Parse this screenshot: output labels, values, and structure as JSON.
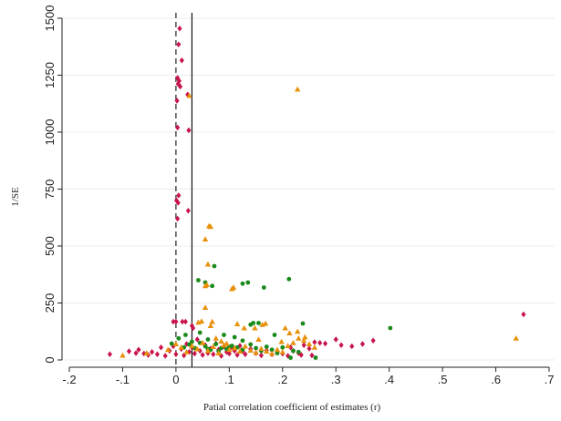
{
  "chart_data": {
    "type": "scatter",
    "title": "",
    "xlabel": "Patial correlation coefficient of estimates (r)",
    "ylabel": "1/SE",
    "xlim": [
      -0.2,
      0.7
    ],
    "ylim": [
      0,
      1500
    ],
    "x_ticks": [
      {
        "value": -0.2,
        "label": "-.2"
      },
      {
        "value": -0.1,
        "label": "-.1"
      },
      {
        "value": 0,
        "label": "0"
      },
      {
        "value": 0.1,
        "label": ".1"
      },
      {
        "value": 0.2,
        "label": ".2"
      },
      {
        "value": 0.3,
        "label": ".3"
      },
      {
        "value": 0.4,
        "label": ".4"
      },
      {
        "value": 0.5,
        "label": ".5"
      },
      {
        "value": 0.6,
        "label": ".6"
      },
      {
        "value": 0.7,
        "label": ".7"
      }
    ],
    "y_ticks": [
      {
        "value": 0,
        "label": "0"
      },
      {
        "value": 250,
        "label": "250"
      },
      {
        "value": 500,
        "label": "500"
      },
      {
        "value": 750,
        "label": "750"
      },
      {
        "value": 1000,
        "label": "1000"
      },
      {
        "value": 1250,
        "label": "1250"
      },
      {
        "value": 1500,
        "label": "1500"
      }
    ],
    "grid": true,
    "reference_lines": [
      {
        "x": 0,
        "style": "dashed",
        "color": "#222222"
      },
      {
        "x": 0.03,
        "style": "solid",
        "color": "#111111"
      }
    ],
    "series": [
      {
        "marker": "diamond",
        "color": "#c8144b",
        "points": [
          [
            0.007,
            1455
          ],
          [
            0.005,
            1385
          ],
          [
            0.011,
            1315
          ],
          [
            0.003,
            1238
          ],
          [
            0.006,
            1225
          ],
          [
            0.004,
            1212
          ],
          [
            0.008,
            1200
          ],
          [
            0.022,
            1165
          ],
          [
            0.002,
            1138
          ],
          [
            0.003,
            1020
          ],
          [
            0.024,
            1008
          ],
          [
            0.005,
            722
          ],
          [
            0.001,
            700
          ],
          [
            0.004,
            690
          ],
          [
            0.023,
            655
          ],
          [
            0.003,
            620
          ],
          [
            -0.005,
            168
          ],
          [
            0.0,
            168
          ],
          [
            0.012,
            168
          ],
          [
            0.018,
            168
          ],
          [
            0.03,
            150
          ],
          [
            0.032,
            140
          ],
          [
            -0.124,
            25
          ],
          [
            -0.088,
            38
          ],
          [
            -0.075,
            30
          ],
          [
            -0.07,
            45
          ],
          [
            -0.06,
            28
          ],
          [
            -0.052,
            22
          ],
          [
            -0.045,
            35
          ],
          [
            -0.035,
            25
          ],
          [
            -0.028,
            55
          ],
          [
            -0.02,
            18
          ],
          [
            -0.012,
            40
          ],
          [
            -0.005,
            60
          ],
          [
            0.0,
            25
          ],
          [
            0.01,
            48
          ],
          [
            0.015,
            20
          ],
          [
            0.02,
            70
          ],
          [
            0.025,
            35
          ],
          [
            0.03,
            55
          ],
          [
            0.035,
            28
          ],
          [
            0.04,
            90
          ],
          [
            0.045,
            40
          ],
          [
            0.05,
            22
          ],
          [
            0.055,
            65
          ],
          [
            0.06,
            30
          ],
          [
            0.065,
            50
          ],
          [
            0.07,
            25
          ],
          [
            0.075,
            72
          ],
          [
            0.08,
            45
          ],
          [
            0.085,
            18
          ],
          [
            0.09,
            60
          ],
          [
            0.095,
            35
          ],
          [
            0.1,
            28
          ],
          [
            0.105,
            55
          ],
          [
            0.11,
            40
          ],
          [
            0.115,
            22
          ],
          [
            0.12,
            62
          ],
          [
            0.125,
            38
          ],
          [
            0.13,
            25
          ],
          [
            0.14,
            48
          ],
          [
            0.15,
            30
          ],
          [
            0.16,
            20
          ],
          [
            0.17,
            42
          ],
          [
            0.18,
            25
          ],
          [
            0.19,
            35
          ],
          [
            0.2,
            28
          ],
          [
            0.21,
            18
          ],
          [
            0.22,
            40
          ],
          [
            0.23,
            30
          ],
          [
            0.24,
            65
          ],
          [
            0.25,
            50
          ],
          [
            0.26,
            78
          ],
          [
            0.27,
            75
          ],
          [
            0.28,
            72
          ],
          [
            0.3,
            90
          ],
          [
            0.31,
            65
          ],
          [
            0.33,
            60
          ],
          [
            0.35,
            70
          ],
          [
            0.37,
            85
          ],
          [
            0.255,
            20
          ],
          [
            0.215,
            55
          ],
          [
            0.235,
            22
          ],
          [
            0.652,
            200
          ]
        ]
      },
      {
        "marker": "circle",
        "color": "#1a8a1a",
        "points": [
          [
            0.042,
            350
          ],
          [
            0.055,
            340
          ],
          [
            0.068,
            325
          ],
          [
            0.072,
            412
          ],
          [
            0.125,
            335
          ],
          [
            0.135,
            340
          ],
          [
            0.165,
            318
          ],
          [
            0.212,
            355
          ],
          [
            0.145,
            162
          ],
          [
            0.14,
            155
          ],
          [
            0.155,
            162
          ],
          [
            0.185,
            110
          ],
          [
            0.238,
            160
          ],
          [
            0.402,
            140
          ],
          [
            0.018,
            110
          ],
          [
            0.03,
            80
          ],
          [
            -0.008,
            72
          ],
          [
            0.005,
            95
          ],
          [
            0.015,
            55
          ],
          [
            0.025,
            68
          ],
          [
            0.035,
            52
          ],
          [
            0.045,
            75
          ],
          [
            0.055,
            60
          ],
          [
            0.065,
            45
          ],
          [
            0.075,
            70
          ],
          [
            0.085,
            52
          ],
          [
            0.095,
            48
          ],
          [
            0.105,
            62
          ],
          [
            0.115,
            55
          ],
          [
            0.125,
            45
          ],
          [
            0.14,
            68
          ],
          [
            0.15,
            52
          ],
          [
            0.16,
            40
          ],
          [
            0.17,
            58
          ],
          [
            0.18,
            45
          ],
          [
            0.19,
            30
          ],
          [
            0.2,
            55
          ],
          [
            0.22,
            40
          ],
          [
            0.23,
            35
          ],
          [
            0.262,
            10
          ],
          [
            0.215,
            10
          ],
          [
            0.045,
            120
          ],
          [
            0.06,
            90
          ],
          [
            0.09,
            110
          ],
          [
            0.11,
            100
          ],
          [
            0.125,
            85
          ],
          [
            0.06,
            48
          ],
          [
            0.08,
            38
          ],
          [
            0.1,
            58
          ]
        ]
      },
      {
        "marker": "triangle",
        "color": "#e8900a",
        "points": [
          [
            0.228,
            1188
          ],
          [
            0.025,
            1160
          ],
          [
            0.062,
            588
          ],
          [
            0.065,
            585
          ],
          [
            0.055,
            530
          ],
          [
            0.06,
            420
          ],
          [
            0.058,
            330
          ],
          [
            0.055,
            325
          ],
          [
            0.108,
            318
          ],
          [
            0.105,
            312
          ],
          [
            0.055,
            230
          ],
          [
            0.042,
            165
          ],
          [
            0.048,
            170
          ],
          [
            0.065,
            150
          ],
          [
            0.068,
            168
          ],
          [
            0.115,
            158
          ],
          [
            0.128,
            140
          ],
          [
            0.148,
            140
          ],
          [
            0.168,
            160
          ],
          [
            0.162,
            155
          ],
          [
            0.205,
            140
          ],
          [
            0.213,
            118
          ],
          [
            0.228,
            125
          ],
          [
            0.242,
            100
          ],
          [
            -0.1,
            20
          ],
          [
            -0.055,
            30
          ],
          [
            -0.015,
            45
          ],
          [
            0.0,
            70
          ],
          [
            0.01,
            55
          ],
          [
            0.02,
            35
          ],
          [
            0.03,
            62
          ],
          [
            0.04,
            48
          ],
          [
            0.05,
            75
          ],
          [
            0.06,
            40
          ],
          [
            0.07,
            58
          ],
          [
            0.08,
            30
          ],
          [
            0.09,
            65
          ],
          [
            0.1,
            45
          ],
          [
            0.11,
            52
          ],
          [
            0.12,
            38
          ],
          [
            0.13,
            60
          ],
          [
            0.14,
            42
          ],
          [
            0.15,
            32
          ],
          [
            0.16,
            50
          ],
          [
            0.17,
            38
          ],
          [
            0.18,
            28
          ],
          [
            0.19,
            45
          ],
          [
            0.2,
            35
          ],
          [
            0.21,
            62
          ],
          [
            0.22,
            75
          ],
          [
            0.23,
            95
          ],
          [
            0.24,
            85
          ],
          [
            0.25,
            70
          ],
          [
            0.26,
            55
          ],
          [
            0.075,
            95
          ],
          [
            0.085,
            82
          ],
          [
            0.095,
            72
          ],
          [
            0.155,
            90
          ],
          [
            0.198,
            80
          ],
          [
            0.638,
            95
          ]
        ]
      }
    ]
  }
}
